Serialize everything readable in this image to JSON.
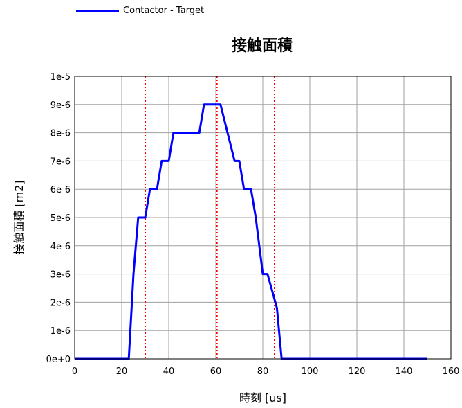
{
  "legend": {
    "label": "Contactor - Target",
    "color": "#0000ff"
  },
  "chart_data": {
    "type": "line",
    "title": "接触面積",
    "xlabel": "時刻 [us]",
    "ylabel": "接触面積 [m2]",
    "xlim": [
      0,
      160
    ],
    "ylim": [
      0,
      1e-05
    ],
    "x_ticks": [
      0,
      20,
      40,
      60,
      80,
      100,
      120,
      140,
      160
    ],
    "x_tick_labels": [
      "0",
      "20",
      "40",
      "60",
      "80",
      "100",
      "120",
      "140",
      "160"
    ],
    "y_ticks": [
      0,
      1e-06,
      2e-06,
      3e-06,
      4e-06,
      5e-06,
      6e-06,
      7e-06,
      8e-06,
      9e-06,
      1e-05
    ],
    "y_tick_labels": [
      "0e+0",
      "1e-6",
      "2e-6",
      "3e-6",
      "4e-6",
      "5e-6",
      "6e-6",
      "7e-6",
      "8e-6",
      "9e-6",
      "1e-5"
    ],
    "grid": true,
    "series": [
      {
        "name": "Contactor - Target",
        "color": "#0000ff",
        "x": [
          0,
          23,
          25,
          27,
          30,
          32,
          35,
          37,
          40,
          42,
          45,
          53,
          55,
          60,
          62,
          65,
          68,
          70,
          72,
          75,
          77,
          80,
          82,
          84,
          86,
          88,
          150
        ],
        "y": [
          0,
          0,
          3e-06,
          5e-06,
          5e-06,
          6e-06,
          6e-06,
          7e-06,
          7e-06,
          8e-06,
          8e-06,
          8e-06,
          9e-06,
          9e-06,
          9e-06,
          8e-06,
          7e-06,
          7e-06,
          6e-06,
          6e-06,
          5e-06,
          3e-06,
          3e-06,
          2.4e-06,
          1.8e-06,
          0,
          0
        ]
      }
    ],
    "vlines": {
      "x": [
        30,
        60.5,
        85
      ],
      "color": "#ff0000",
      "style": "dotted"
    }
  }
}
